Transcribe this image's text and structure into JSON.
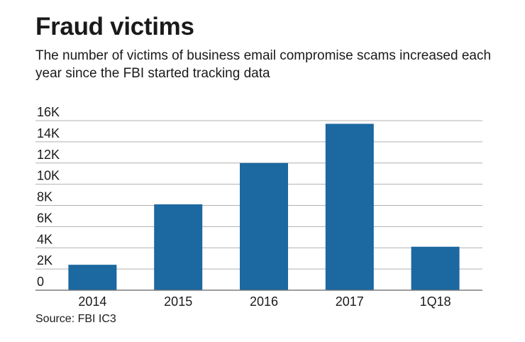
{
  "chart_data": {
    "type": "bar",
    "title": "Fraud victims",
    "subtitle": "The number of victims of business email compromise scams increased each year since the FBI started tracking data",
    "categories": [
      "2014",
      "2015",
      "2016",
      "2017",
      "1Q18"
    ],
    "values": [
      2400,
      8100,
      12000,
      15700,
      4100
    ],
    "xlabel": "",
    "ylabel": "",
    "ylim": [
      0,
      16000
    ],
    "yticks": [
      0,
      2000,
      4000,
      6000,
      8000,
      10000,
      12000,
      14000,
      16000
    ],
    "ytick_labels": [
      "0",
      "2K",
      "4K",
      "6K",
      "8K",
      "10K",
      "12K",
      "14K",
      "16K"
    ],
    "grid": true,
    "source": "Source: FBI IC3",
    "colors": {
      "bar": "#1c68a0",
      "grid": "#b0b0b0",
      "axis": "#777777"
    }
  }
}
